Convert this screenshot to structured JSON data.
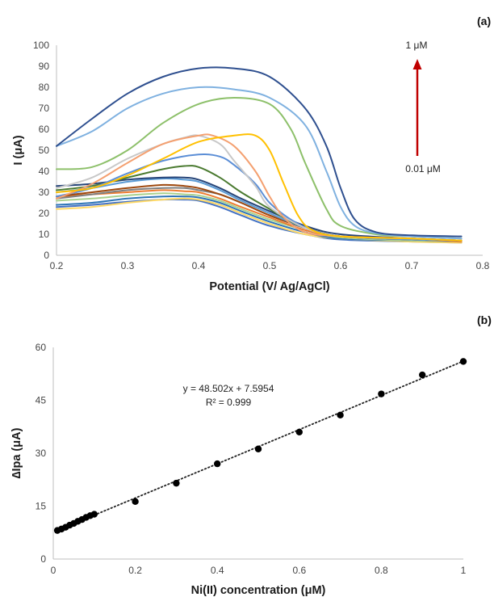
{
  "chart_data": [
    {
      "panel": "(a)",
      "type": "line",
      "xlabel": "Potential (V/ Ag/AgCl)",
      "ylabel": "I (μA)",
      "xlim": [
        0.2,
        0.8
      ],
      "ylim": [
        0,
        100
      ],
      "xticks": [
        "0.2",
        "0.3",
        "0.4",
        "0.5",
        "0.6",
        "0.7",
        "0.8"
      ],
      "yticks": [
        "0",
        "10",
        "20",
        "30",
        "40",
        "50",
        "60",
        "70",
        "80",
        "90",
        "100"
      ],
      "grid": false,
      "annotations": {
        "top_label": "1 μM",
        "bottom_label": "0.01 μM",
        "arrow_color": "#c00000"
      },
      "series": [
        {
          "color": "#2e4f8f",
          "x": [
            0.2,
            0.25,
            0.3,
            0.35,
            0.4,
            0.45,
            0.5,
            0.55,
            0.58,
            0.6,
            0.62,
            0.65,
            0.7,
            0.77
          ],
          "y": [
            52,
            65,
            77,
            85,
            89,
            89,
            85,
            70,
            52,
            32,
            17,
            11,
            9.5,
            9
          ]
        },
        {
          "color": "#7fb1e0",
          "x": [
            0.2,
            0.25,
            0.3,
            0.35,
            0.4,
            0.45,
            0.5,
            0.55,
            0.58,
            0.6,
            0.62,
            0.65,
            0.7,
            0.77
          ],
          "y": [
            52,
            59,
            70,
            77,
            80,
            79,
            75,
            62,
            40,
            23,
            14,
            10.5,
            9,
            8
          ]
        },
        {
          "color": "#8dc06a",
          "x": [
            0.2,
            0.25,
            0.3,
            0.35,
            0.4,
            0.45,
            0.5,
            0.53,
            0.55,
            0.58,
            0.6,
            0.65,
            0.7,
            0.77
          ],
          "y": [
            41,
            42,
            50,
            63,
            72,
            75,
            72,
            60,
            44,
            22,
            14,
            10,
            9,
            8
          ]
        },
        {
          "color": "#ffc000",
          "x": [
            0.2,
            0.25,
            0.3,
            0.35,
            0.4,
            0.45,
            0.48,
            0.5,
            0.52,
            0.54,
            0.56,
            0.6,
            0.7,
            0.77
          ],
          "y": [
            30,
            32,
            38,
            46,
            54,
            57,
            57,
            50,
            34,
            19,
            12,
            9,
            8,
            7
          ]
        },
        {
          "color": "#f4a070",
          "x": [
            0.2,
            0.25,
            0.3,
            0.35,
            0.4,
            0.42,
            0.45,
            0.48,
            0.5,
            0.52,
            0.55,
            0.6,
            0.7,
            0.77
          ],
          "y": [
            27,
            34,
            44,
            53,
            57,
            57,
            52,
            40,
            28,
            18,
            11,
            9,
            8,
            7
          ]
        },
        {
          "color": "#c8c8c8",
          "x": [
            0.2,
            0.25,
            0.3,
            0.35,
            0.38,
            0.4,
            0.43,
            0.45,
            0.48,
            0.5,
            0.55,
            0.6,
            0.7,
            0.77
          ],
          "y": [
            32,
            37,
            46,
            53,
            56,
            57,
            53,
            45,
            33,
            23,
            13,
            9,
            8,
            7
          ]
        },
        {
          "color": "#5b8ed6",
          "x": [
            0.2,
            0.25,
            0.3,
            0.35,
            0.4,
            0.43,
            0.45,
            0.48,
            0.5,
            0.53,
            0.56,
            0.6,
            0.7,
            0.77
          ],
          "y": [
            28,
            32,
            39,
            45,
            48,
            47,
            43,
            34,
            25,
            17,
            12,
            9,
            8,
            7
          ]
        },
        {
          "color": "#4a7a30",
          "x": [
            0.2,
            0.25,
            0.3,
            0.35,
            0.38,
            0.4,
            0.43,
            0.46,
            0.5,
            0.53,
            0.56,
            0.6,
            0.7,
            0.77
          ],
          "y": [
            31,
            33,
            37,
            41,
            42.5,
            42,
            37,
            30,
            22,
            16,
            12,
            9,
            8,
            7
          ]
        },
        {
          "color": "#264478",
          "x": [
            0.2,
            0.25,
            0.3,
            0.35,
            0.38,
            0.4,
            0.43,
            0.46,
            0.5,
            0.55,
            0.6,
            0.7,
            0.77
          ],
          "y": [
            33,
            34,
            36,
            37,
            37,
            36,
            32,
            27,
            21,
            14,
            10,
            8,
            7
          ]
        },
        {
          "color": "#5b9bd5",
          "x": [
            0.2,
            0.25,
            0.3,
            0.35,
            0.38,
            0.4,
            0.43,
            0.46,
            0.5,
            0.55,
            0.6,
            0.7,
            0.77
          ],
          "y": [
            30,
            32,
            35,
            36.5,
            36,
            35,
            31,
            26,
            20,
            13,
            9,
            7.5,
            7
          ]
        },
        {
          "color": "#9e480e",
          "x": [
            0.2,
            0.25,
            0.3,
            0.35,
            0.38,
            0.4,
            0.43,
            0.46,
            0.5,
            0.55,
            0.6,
            0.7,
            0.77
          ],
          "y": [
            28,
            30,
            32,
            33.5,
            33,
            32,
            29,
            25,
            19,
            13,
            9,
            7.5,
            7
          ]
        },
        {
          "color": "#7f7f7f",
          "x": [
            0.2,
            0.25,
            0.3,
            0.35,
            0.38,
            0.4,
            0.43,
            0.46,
            0.5,
            0.55,
            0.6,
            0.7,
            0.77
          ],
          "y": [
            27,
            29,
            31,
            32,
            32,
            31,
            29,
            25,
            19,
            13,
            9,
            7.5,
            7
          ]
        },
        {
          "color": "#ed7d31",
          "x": [
            0.2,
            0.25,
            0.3,
            0.35,
            0.38,
            0.4,
            0.43,
            0.46,
            0.5,
            0.55,
            0.6,
            0.7,
            0.77
          ],
          "y": [
            28,
            29,
            30,
            31,
            30.5,
            30,
            27,
            23,
            18,
            12,
            9,
            7.5,
            6.5
          ]
        },
        {
          "color": "#a9d18e",
          "x": [
            0.2,
            0.25,
            0.3,
            0.35,
            0.38,
            0.4,
            0.43,
            0.46,
            0.5,
            0.55,
            0.6,
            0.7,
            0.77
          ],
          "y": [
            26,
            27,
            28.5,
            29.5,
            29,
            28.5,
            26,
            22,
            17,
            12,
            8.5,
            7,
            6.5
          ]
        },
        {
          "color": "#2e75b6",
          "x": [
            0.2,
            0.25,
            0.3,
            0.35,
            0.38,
            0.4,
            0.43,
            0.46,
            0.5,
            0.55,
            0.6,
            0.7,
            0.77
          ],
          "y": [
            24,
            25,
            27,
            28,
            28,
            27.5,
            25,
            21,
            16,
            11,
            8,
            7,
            6.5
          ]
        },
        {
          "color": "#ffd966",
          "x": [
            0.2,
            0.25,
            0.3,
            0.35,
            0.38,
            0.4,
            0.43,
            0.46,
            0.5,
            0.55,
            0.6,
            0.7,
            0.77
          ],
          "y": [
            22,
            23,
            25,
            26.5,
            27,
            26.5,
            24,
            20,
            15,
            10,
            8,
            6.5,
            6
          ]
        },
        {
          "color": "#4472c4",
          "x": [
            0.2,
            0.25,
            0.3,
            0.35,
            0.38,
            0.4,
            0.43,
            0.46,
            0.5,
            0.55,
            0.6,
            0.7,
            0.77
          ],
          "y": [
            23,
            24,
            25.5,
            26.5,
            26.5,
            26,
            23,
            19,
            14,
            10,
            7.5,
            6.5,
            6
          ]
        }
      ]
    },
    {
      "panel": "(b)",
      "type": "scatter",
      "xlabel": "Ni(II) concentration (μM)",
      "ylabel": "∆Ipa (μA)",
      "xlim": [
        0,
        1
      ],
      "ylim": [
        0,
        60
      ],
      "xticks": [
        "0",
        "0.2",
        "0.4",
        "0.6",
        "0.8",
        "1"
      ],
      "yticks": [
        "0",
        "15",
        "30",
        "45",
        "60"
      ],
      "grid": false,
      "trendline": {
        "slope": 48.502,
        "intercept": 7.5954,
        "style": "dotted"
      },
      "equation": "y = 48.502x + 7.5954",
      "r_squared": "R² = 0.999",
      "x": [
        0.01,
        0.02,
        0.03,
        0.04,
        0.05,
        0.06,
        0.07,
        0.08,
        0.09,
        0.1,
        0.2,
        0.3,
        0.4,
        0.5,
        0.6,
        0.7,
        0.8,
        0.9,
        1.0
      ],
      "y": [
        8.1,
        8.5,
        9.0,
        9.6,
        10.1,
        10.7,
        11.2,
        11.8,
        12.3,
        12.7,
        16.3,
        21.5,
        27.0,
        31.2,
        36.0,
        40.8,
        46.8,
        52.2,
        56.0
      ]
    }
  ]
}
